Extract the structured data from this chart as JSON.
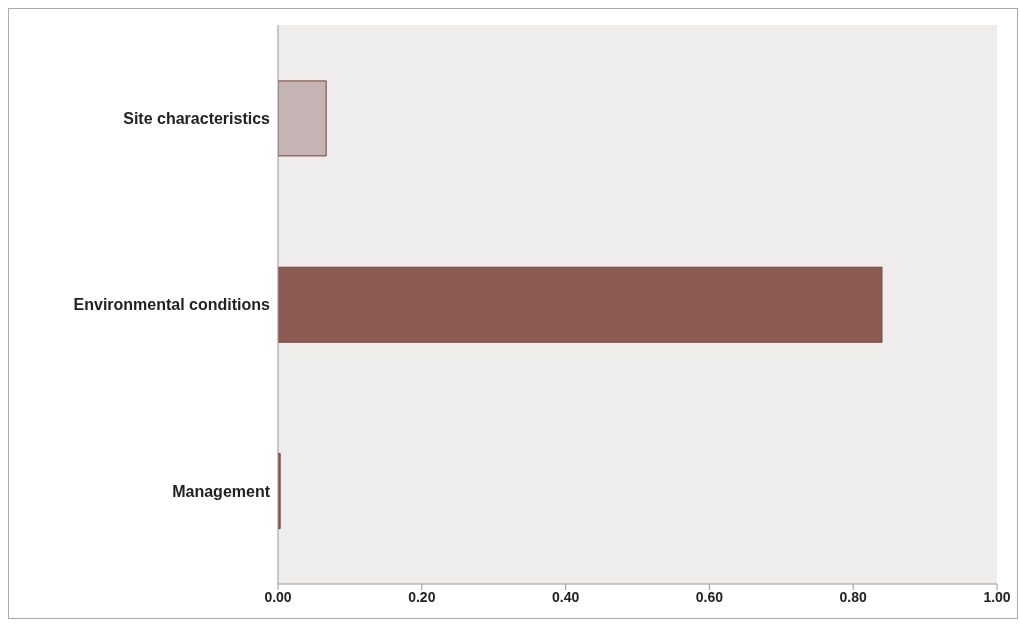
{
  "chart_data": {
    "type": "bar",
    "orientation": "horizontal",
    "categories": [
      "Site characteristics",
      "Environmental conditions",
      "Management"
    ],
    "values": [
      0.067,
      0.84,
      0.003
    ],
    "colors": [
      "#c4b4b3",
      "#8b5a52",
      "#8b5a52"
    ],
    "xlim": [
      0,
      1
    ],
    "xticks": [
      {
        "value": 0,
        "label": "0.00"
      },
      {
        "value": 0.2,
        "label": "0.20"
      },
      {
        "value": 0.4,
        "label": "0.40"
      },
      {
        "value": 0.6,
        "label": "0.60"
      },
      {
        "value": 0.8,
        "label": "0.80"
      },
      {
        "value": 1,
        "label": "1.00"
      }
    ],
    "grid": false
  }
}
